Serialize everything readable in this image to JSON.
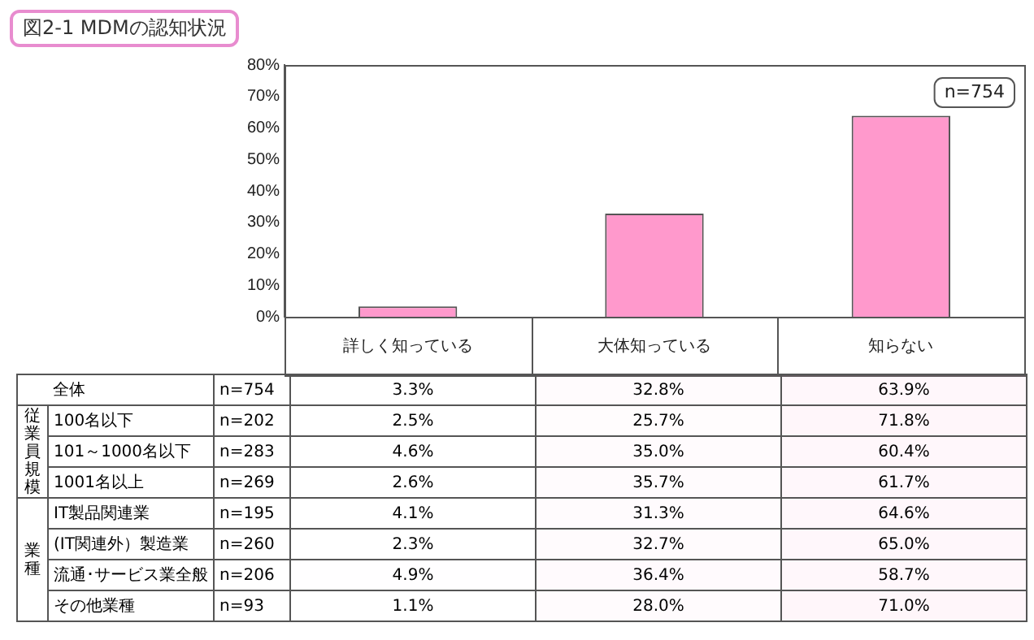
{
  "chart_data": [
    {
      "type": "bar",
      "title": "図2-1 MDMの認知状況",
      "categories": [
        "詳しく知っている",
        "大体知っている",
        "知らない"
      ],
      "values": [
        3.3,
        32.8,
        63.9
      ],
      "color": "#ff99cc",
      "ylim": [
        0,
        80
      ],
      "yticks": [
        {
          "value": 0,
          "label": "0%"
        },
        {
          "value": 10,
          "label": "10%"
        },
        {
          "value": 20,
          "label": "20%"
        },
        {
          "value": 30,
          "label": "30%"
        },
        {
          "value": 40,
          "label": "40%"
        },
        {
          "value": 50,
          "label": "50%"
        },
        {
          "value": 60,
          "label": "60%"
        },
        {
          "value": 70,
          "label": "70%"
        },
        {
          "value": 80,
          "label": "80%"
        }
      ],
      "grid": false,
      "legend": false,
      "annotations": [
        "n=754"
      ]
    },
    {
      "type": "heatmap",
      "categories": [
        null,
        null,
        null
      ],
      "y_categories": [
        "全体",
        "100名以下",
        "101～1000名以下",
        "1001名以上",
        "IT製品関連業",
        "(IT関連外）製造業",
        "流通･サービス業全般",
        "その他業種"
      ],
      "y2_categories": [
        "n=754",
        "n=202",
        "n=283",
        "n=269",
        "n=195",
        "n=260",
        "n=206",
        "n=93"
      ],
      "cells": [
        [
          3.3,
          32.8,
          63.9
        ],
        [
          2.5,
          25.7,
          71.8
        ],
        [
          4.6,
          35.0,
          60.4
        ],
        [
          2.6,
          35.7,
          61.7
        ],
        [
          4.1,
          31.3,
          64.6
        ],
        [
          2.3,
          32.7,
          65.0
        ],
        [
          4.9,
          36.4,
          58.7
        ],
        [
          1.1,
          28.0,
          71.0
        ]
      ],
      "cell_labels": [
        [
          "3.3%",
          "32.8%",
          "63.9%"
        ],
        [
          "2.5%",
          "25.7%",
          "71.8%"
        ],
        [
          "4.6%",
          "35.0%",
          "60.4%"
        ],
        [
          "2.6%",
          "35.7%",
          "61.7%"
        ],
        [
          "4.1%",
          "31.3%",
          "64.6%"
        ],
        [
          "2.3%",
          "32.7%",
          "65.0%"
        ],
        [
          "4.9%",
          "36.4%",
          "58.7%"
        ],
        [
          "1.1%",
          "28.0%",
          "71.0%"
        ]
      ],
      "annotations": [
        "従業員規模",
        "業種"
      ]
    }
  ]
}
